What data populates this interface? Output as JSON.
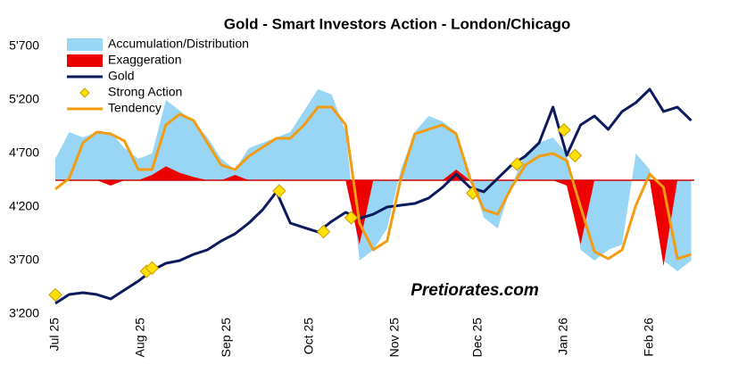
{
  "chart_data": {
    "type": "line",
    "title": "Gold - Smart Investors Action - London/Chicago",
    "annotations": [
      "Pretiorates.com"
    ],
    "x": [
      0,
      5,
      10,
      15,
      20,
      25,
      30,
      35,
      40,
      45,
      50,
      55,
      60,
      65,
      70,
      75,
      80,
      85,
      90,
      95,
      100,
      105,
      110,
      115,
      120,
      125,
      130,
      135,
      140,
      145,
      150,
      155,
      160,
      165,
      170,
      175,
      180,
      185,
      190,
      195,
      200,
      205,
      210,
      215,
      220,
      225,
      230
    ],
    "xlim": [
      0,
      235
    ],
    "xticks": [
      {
        "value": 0,
        "label": "Jul 25"
      },
      {
        "value": 31,
        "label": "Aug 25"
      },
      {
        "value": 62,
        "label": "Sep 25"
      },
      {
        "value": 92,
        "label": "Oct 25"
      },
      {
        "value": 123,
        "label": "Nov 25"
      },
      {
        "value": 153,
        "label": "Dec 25"
      },
      {
        "value": 184,
        "label": "Jan 26"
      },
      {
        "value": 215,
        "label": "Feb 26"
      }
    ],
    "ylim": [
      3200,
      5700
    ],
    "yticks": [
      {
        "value": 3200,
        "label": "3'200"
      },
      {
        "value": 3700,
        "label": "3'700"
      },
      {
        "value": 4200,
        "label": "4'200"
      },
      {
        "value": 4700,
        "label": "4'700"
      },
      {
        "value": 5200,
        "label": "5'200"
      },
      {
        "value": 5700,
        "label": "5'700"
      }
    ],
    "reference_line": {
      "value": 4450,
      "color": "#d00000"
    },
    "legend": "upper left",
    "series": [
      {
        "name": "Accumulation/Distribution",
        "style": "area",
        "color": "#99d6f5",
        "values": [
          4650,
          4900,
          4850,
          4900,
          4900,
          4750,
          4650,
          4700,
          5200,
          5100,
          5000,
          4850,
          4650,
          4550,
          4750,
          4800,
          4850,
          4900,
          5100,
          5300,
          5250,
          4900,
          3700,
          3800,
          4000,
          4550,
          4900,
          5050,
          5000,
          4900,
          4500,
          4100,
          4000,
          4400,
          4700,
          4800,
          4850,
          4700,
          3800,
          3700,
          3800,
          3850,
          4700,
          4550,
          3700,
          3600,
          3700
        ]
      },
      {
        "name": "Exaggeration",
        "style": "area",
        "color": "#ee0000",
        "values": [
          4450,
          4450,
          4450,
          4450,
          4400,
          4450,
          4450,
          4500,
          4580,
          4520,
          4480,
          4450,
          4450,
          4500,
          4450,
          4450,
          4450,
          4450,
          4450,
          4450,
          4450,
          4450,
          3850,
          4450,
          4450,
          4450,
          4450,
          4450,
          4450,
          4550,
          4450,
          4450,
          4450,
          4450,
          4450,
          4450,
          4450,
          4400,
          3850,
          4450,
          4450,
          4450,
          4450,
          4450,
          3650,
          4450,
          4450
        ]
      },
      {
        "name": "Gold",
        "style": "line",
        "color": "#0c1a5e",
        "values": [
          3300,
          3383,
          3400,
          3383,
          3342,
          3425,
          3508,
          3608,
          3675,
          3700,
          3758,
          3800,
          3883,
          3950,
          4050,
          4175,
          4342,
          4050,
          4008,
          3967,
          4067,
          4150,
          4092,
          4133,
          4200,
          4217,
          4233,
          4283,
          4383,
          4508,
          4383,
          4342,
          4467,
          4592,
          4675,
          4800,
          5133,
          4683,
          4967,
          5050,
          4925,
          5092,
          5175,
          5300,
          5092,
          5133,
          5008
        ]
      },
      {
        "name": "Strong Action",
        "style": "points",
        "color": "#ffe000",
        "x": [
          0,
          33,
          35,
          81,
          97,
          107,
          151,
          167,
          184,
          188
        ],
        "values": [
          3380,
          3600,
          3630,
          4350,
          3970,
          4100,
          4330,
          4600,
          4920,
          4680
        ]
      },
      {
        "name": "Tendency",
        "style": "line",
        "color": "#f39c12",
        "values": [
          4367,
          4467,
          4800,
          4900,
          4883,
          4817,
          4550,
          4550,
          4967,
          5067,
          5008,
          4800,
          4592,
          4550,
          4675,
          4758,
          4842,
          4842,
          4967,
          5133,
          5133,
          4967,
          4050,
          3800,
          3883,
          4467,
          4883,
          4925,
          4967,
          4883,
          4467,
          4175,
          4133,
          4383,
          4592,
          4675,
          4700,
          4633,
          4200,
          3783,
          3717,
          3800,
          4217,
          4508,
          4383,
          3717,
          3758
        ]
      }
    ]
  }
}
